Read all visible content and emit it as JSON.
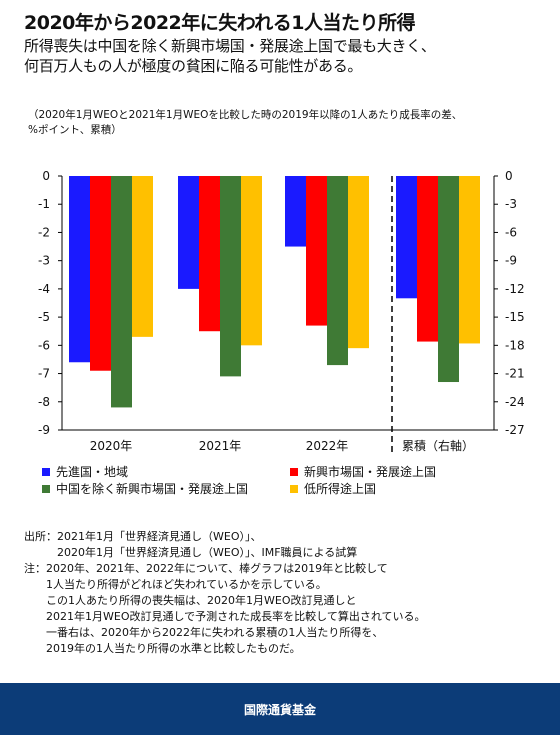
{
  "header": {
    "title": "2020年から2022年に失われる1人当たり所得",
    "subtitle_line1": "所得喪失は中国を除く新興市場国・発展途上国で最も大きく、",
    "subtitle_line2": "何百万人もの人が極度の貧困に陥る可能性がある。"
  },
  "units_line1": "（2020年1月WEOと2021年1月WEOを比較した時の2019年以降の1人あたり成長率の差、",
  "units_line2": "%ポイント、累積）",
  "colors": {
    "advanced": "#1a1aff",
    "emerging": "#ff0000",
    "emerging_ex_china": "#3f7a35",
    "low_income": "#ffc000",
    "footer_bg": "#0c3c78"
  },
  "chart_data": {
    "type": "bar",
    "categories": [
      "2020年",
      "2021年",
      "2022年",
      "累積（右軸）"
    ],
    "series": [
      {
        "name": "先進国・地域",
        "values": [
          -6.6,
          -4.0,
          -2.5,
          -13.0
        ]
      },
      {
        "name": "新興市場国・発展途上国",
        "values": [
          -6.9,
          -5.5,
          -5.3,
          -17.6
        ]
      },
      {
        "name": "中国を除く新興市場国・発展途上国",
        "values": [
          -8.2,
          -7.1,
          -6.7,
          -21.9
        ]
      },
      {
        "name": "低所得途上国",
        "values": [
          -5.7,
          -6.0,
          -6.1,
          -17.8
        ]
      }
    ],
    "left_axis": {
      "ylim": [
        -9,
        0
      ],
      "ticks": [
        "0",
        "-1",
        "-2",
        "-3",
        "-4",
        "-5",
        "-6",
        "-7",
        "-8",
        "-9"
      ]
    },
    "right_axis": {
      "ylim": [
        -27,
        0
      ],
      "ticks": [
        "0",
        "-3",
        "-6",
        "-9",
        "-12",
        "-15",
        "-18",
        "-21",
        "-24",
        "-27"
      ]
    },
    "grid": false,
    "legend_position": "bottom"
  },
  "legend": [
    {
      "label": "先進国・地域"
    },
    {
      "label": "新興市場国・発展途上国"
    },
    {
      "label": "中国を除く新興市場国・発展途上国"
    },
    {
      "label": "低所得途上国"
    }
  ],
  "notes": [
    "出所：2021年1月「世界経済見通し（WEO）」、",
    "　　　2020年1月「世界経済見通し（WEO）」、IMF職員による試算",
    "注：2020年、2021年、2022年について、棒グラフは2019年と比較して",
    "　　1人当たり所得がどれほど失われているかを示している。",
    "　　この1人あたり所得の喪失幅は、2020年1月WEO改訂見通しと",
    "　　2021年1月WEO改訂見通しで予測された成長率を比較して算出されている。",
    "　　一番右は、2020年から2022年に失われる累積の1人当たり所得を、",
    "　　2019年の1人当たり所得の水準と比較したものだ。"
  ],
  "footer": {
    "org_name": "国際通貨基金"
  }
}
